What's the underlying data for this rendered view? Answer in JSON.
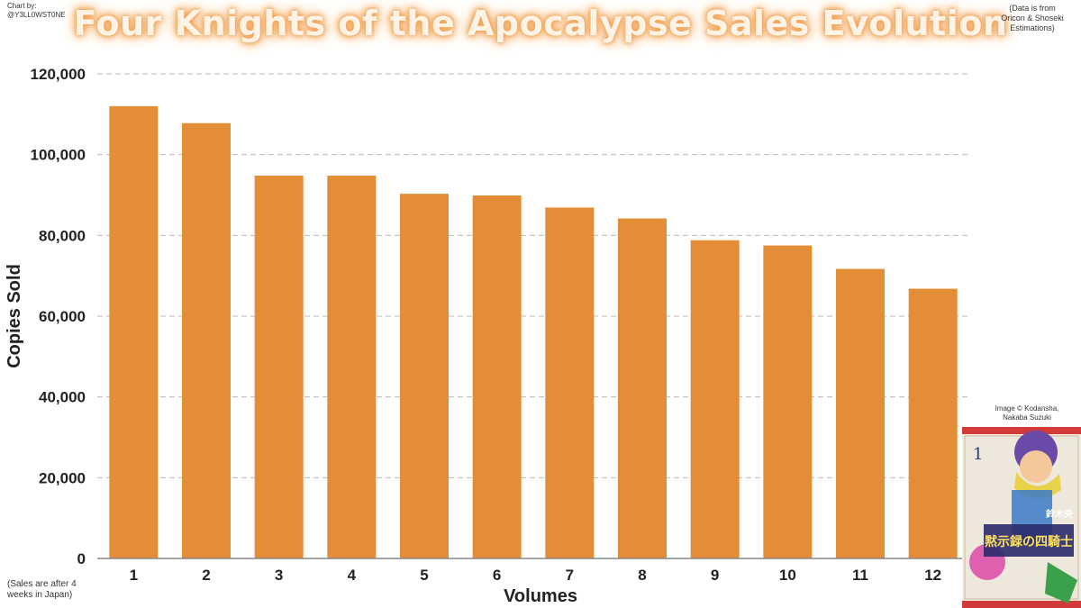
{
  "credit_left": [
    "Chart by:",
    "@Y3LL0WST0NE"
  ],
  "credit_right": [
    "(Data is from",
    "Oricon & Shoseki",
    "Estimations)"
  ],
  "note_bottom": [
    "(Sales are after 4",
    "weeks in Japan)"
  ],
  "image_credit": [
    "Image © Kodansha,",
    "Nakaba Suzuki"
  ],
  "cover": {
    "volume_number": "1",
    "logo_text": "黙示録の四騎士",
    "author_text": "鈴木央"
  },
  "colors": {
    "bar": "#e38e37",
    "grid": "#bbbbbb",
    "title_glow": "#f0a050"
  },
  "chart_data": {
    "type": "bar",
    "title": "Four Knights of the Apocalypse Sales Evolution",
    "xlabel": "Volumes",
    "ylabel": "Copies Sold",
    "categories": [
      "1",
      "2",
      "3",
      "4",
      "5",
      "6",
      "7",
      "8",
      "9",
      "10",
      "11",
      "12"
    ],
    "values": [
      112000,
      107800,
      94800,
      94800,
      90300,
      89900,
      86900,
      84200,
      78800,
      77500,
      71700,
      66800
    ],
    "ylim": [
      0,
      120000
    ],
    "yticks": [
      0,
      20000,
      40000,
      60000,
      80000,
      100000,
      120000
    ],
    "ytick_labels": [
      "0",
      "20,000",
      "40,000",
      "60,000",
      "80,000",
      "100,000",
      "120,000"
    ],
    "grid": true,
    "legend": "none"
  }
}
